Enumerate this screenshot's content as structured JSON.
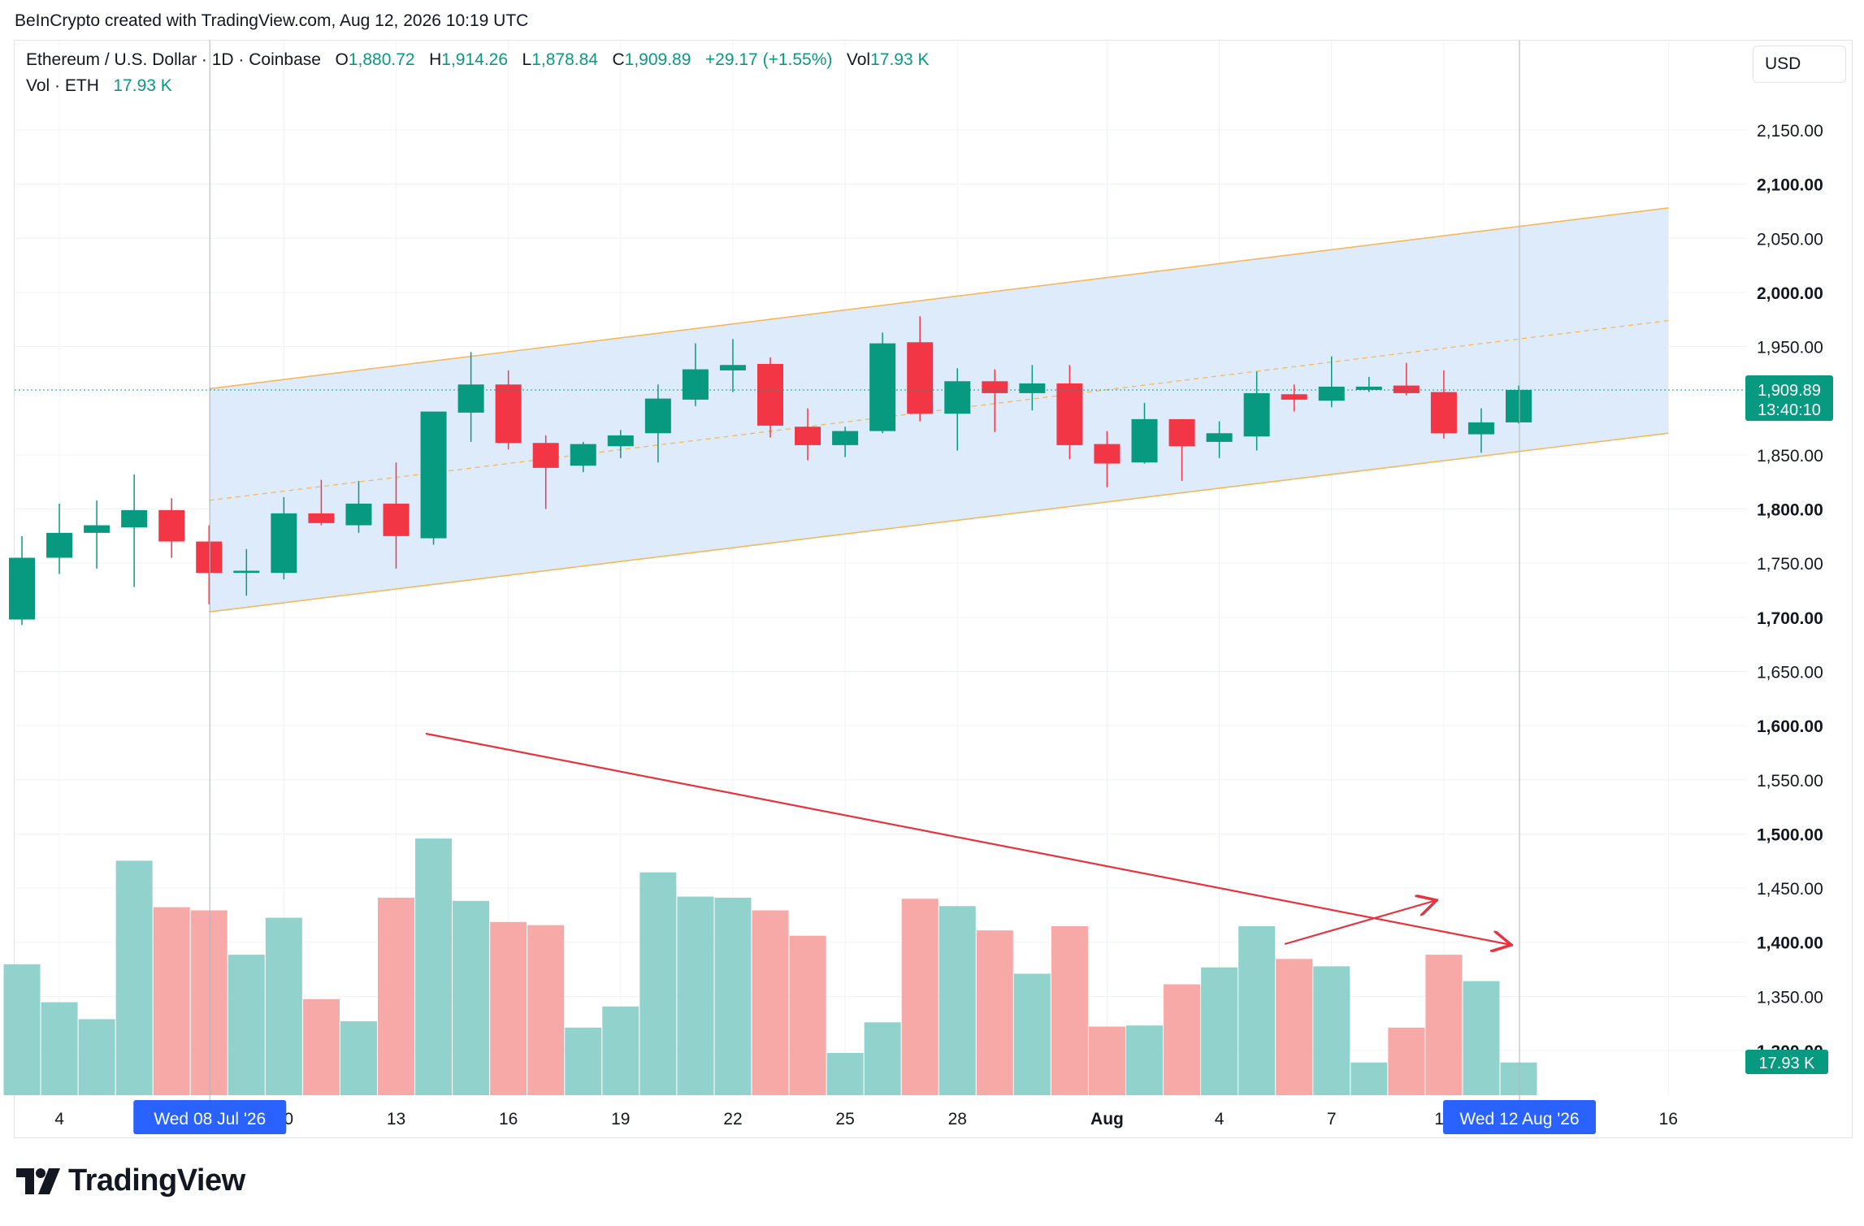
{
  "header": {
    "credit": "BeInCrypto created with TradingView.com, Aug 12, 2026 10:19 UTC"
  },
  "legend": {
    "symbol": "Ethereum / U.S. Dollar · 1D · Coinbase",
    "open_label": "O",
    "open": "1,880.72",
    "high_label": "H",
    "high": "1,914.26",
    "low_label": "L",
    "low": "1,878.84",
    "close_label": "C",
    "close": "1,909.89",
    "change": "+29.17 (+1.55%)",
    "vol_label": "Vol",
    "vol": "17.93 K",
    "vol_series": "Vol · ETH",
    "vol_series_value": "17.93 K"
  },
  "currency": "USD",
  "price_tag": {
    "price": "1,909.89",
    "countdown": "13:40:10"
  },
  "volume_tag": "17.93 K",
  "crosshair": {
    "left_date": "Wed 08 Jul '26",
    "right_date": "Wed 12 Aug '26"
  },
  "logo_text": "TradingView",
  "colors": {
    "up": "#089981",
    "down": "#f23645",
    "up_vol": "#92d2cc",
    "down_vol": "#f7a9a7",
    "channel_fill": "#dceafb",
    "channel_line": "#f5b85b",
    "arrow": "#e8323e"
  },
  "chart_data": {
    "type": "candlestick",
    "title": "Ethereum / U.S. Dollar · 1D · Coinbase",
    "y_ticks": [
      {
        "v": 2150,
        "label": "2,150.00",
        "bold": false
      },
      {
        "v": 2100,
        "label": "2,100.00",
        "bold": true
      },
      {
        "v": 2050,
        "label": "2,050.00",
        "bold": false
      },
      {
        "v": 2000,
        "label": "2,000.00",
        "bold": true
      },
      {
        "v": 1950,
        "label": "1,950.00",
        "bold": false
      },
      {
        "v": 1850,
        "label": "1,850.00",
        "bold": false
      },
      {
        "v": 1800,
        "label": "1,800.00",
        "bold": true
      },
      {
        "v": 1750,
        "label": "1,750.00",
        "bold": false
      },
      {
        "v": 1700,
        "label": "1,700.00",
        "bold": true
      },
      {
        "v": 1650,
        "label": "1,650.00",
        "bold": false
      },
      {
        "v": 1600,
        "label": "1,600.00",
        "bold": true
      },
      {
        "v": 1550,
        "label": "1,550.00",
        "bold": false
      },
      {
        "v": 1500,
        "label": "1,500.00",
        "bold": true
      },
      {
        "v": 1450,
        "label": "1,450.00",
        "bold": false
      },
      {
        "v": 1400,
        "label": "1,400.00",
        "bold": true
      },
      {
        "v": 1350,
        "label": "1,350.00",
        "bold": false
      },
      {
        "v": 1300,
        "label": "1,300.00",
        "bold": true
      }
    ],
    "x_ticks": [
      {
        "i": 1,
        "label": "4",
        "bold": false
      },
      {
        "i": 7,
        "label": "10",
        "bold": false
      },
      {
        "i": 10,
        "label": "13",
        "bold": false
      },
      {
        "i": 13,
        "label": "16",
        "bold": false
      },
      {
        "i": 16,
        "label": "19",
        "bold": false
      },
      {
        "i": 19,
        "label": "22",
        "bold": false
      },
      {
        "i": 22,
        "label": "25",
        "bold": false
      },
      {
        "i": 25,
        "label": "28",
        "bold": false
      },
      {
        "i": 29,
        "label": "Aug",
        "bold": true
      },
      {
        "i": 32,
        "label": "4",
        "bold": false
      },
      {
        "i": 35,
        "label": "7",
        "bold": false
      },
      {
        "i": 38,
        "label": "10",
        "bold": false
      },
      {
        "i": 44,
        "label": "16",
        "bold": false
      }
    ],
    "candles": [
      {
        "o": 1698,
        "h": 1775,
        "l": 1693,
        "c": 1755
      },
      {
        "o": 1755,
        "h": 1805,
        "l": 1740,
        "c": 1778
      },
      {
        "o": 1778,
        "h": 1808,
        "l": 1745,
        "c": 1785
      },
      {
        "o": 1783,
        "h": 1832,
        "l": 1728,
        "c": 1799
      },
      {
        "o": 1799,
        "h": 1810,
        "l": 1755,
        "c": 1770
      },
      {
        "o": 1770,
        "h": 1785,
        "l": 1712,
        "c": 1741
      },
      {
        "o": 1741,
        "h": 1763,
        "l": 1720,
        "c": 1743
      },
      {
        "o": 1741,
        "h": 1811,
        "l": 1735,
        "c": 1796
      },
      {
        "o": 1796,
        "h": 1827,
        "l": 1785,
        "c": 1787
      },
      {
        "o": 1785,
        "h": 1826,
        "l": 1778,
        "c": 1805
      },
      {
        "o": 1805,
        "h": 1843,
        "l": 1745,
        "c": 1775
      },
      {
        "o": 1773,
        "h": 1890,
        "l": 1767,
        "c": 1890
      },
      {
        "o": 1889,
        "h": 1945,
        "l": 1862,
        "c": 1915
      },
      {
        "o": 1915,
        "h": 1928,
        "l": 1855,
        "c": 1861
      },
      {
        "o": 1861,
        "h": 1868,
        "l": 1800,
        "c": 1838
      },
      {
        "o": 1840,
        "h": 1862,
        "l": 1834,
        "c": 1860
      },
      {
        "o": 1858,
        "h": 1873,
        "l": 1847,
        "c": 1868
      },
      {
        "o": 1870,
        "h": 1915,
        "l": 1843,
        "c": 1902
      },
      {
        "o": 1901,
        "h": 1953,
        "l": 1895,
        "c": 1929
      },
      {
        "o": 1928,
        "h": 1957,
        "l": 1908,
        "c": 1933
      },
      {
        "o": 1934,
        "h": 1940,
        "l": 1866,
        "c": 1877
      },
      {
        "o": 1876,
        "h": 1893,
        "l": 1845,
        "c": 1859
      },
      {
        "o": 1859,
        "h": 1876,
        "l": 1848,
        "c": 1872
      },
      {
        "o": 1872,
        "h": 1963,
        "l": 1870,
        "c": 1953
      },
      {
        "o": 1954,
        "h": 1978,
        "l": 1881,
        "c": 1888
      },
      {
        "o": 1888,
        "h": 1930,
        "l": 1854,
        "c": 1918
      },
      {
        "o": 1918,
        "h": 1929,
        "l": 1871,
        "c": 1907
      },
      {
        "o": 1907,
        "h": 1933,
        "l": 1891,
        "c": 1916
      },
      {
        "o": 1916,
        "h": 1933,
        "l": 1846,
        "c": 1859
      },
      {
        "o": 1860,
        "h": 1872,
        "l": 1820,
        "c": 1842
      },
      {
        "o": 1843,
        "h": 1898,
        "l": 1842,
        "c": 1883
      },
      {
        "o": 1883,
        "h": 1883,
        "l": 1826,
        "c": 1858
      },
      {
        "o": 1862,
        "h": 1881,
        "l": 1847,
        "c": 1870
      },
      {
        "o": 1867,
        "h": 1927,
        "l": 1854,
        "c": 1907
      },
      {
        "o": 1906,
        "h": 1915,
        "l": 1890,
        "c": 1901
      },
      {
        "o": 1900,
        "h": 1941,
        "l": 1894,
        "c": 1913
      },
      {
        "o": 1910,
        "h": 1922,
        "l": 1908,
        "c": 1913
      },
      {
        "o": 1914,
        "h": 1935,
        "l": 1905,
        "c": 1907
      },
      {
        "o": 1908,
        "h": 1928,
        "l": 1865,
        "c": 1870
      },
      {
        "o": 1869,
        "h": 1893,
        "l": 1852,
        "c": 1880
      },
      {
        "o": 1880,
        "h": 1914,
        "l": 1879,
        "c": 1910
      }
    ],
    "volume_ylim": [
      0,
      245
    ],
    "volume": [
      124,
      88,
      72,
      222,
      178,
      175,
      133,
      168,
      91,
      70,
      187,
      243,
      184,
      164,
      161,
      64,
      84,
      211,
      188,
      187,
      175,
      151,
      40,
      69,
      186,
      179,
      156,
      115,
      160,
      65,
      66,
      105,
      121,
      160,
      129,
      122,
      31,
      64,
      133,
      108,
      31
    ],
    "channel": {
      "upper": [
        {
          "i": 5,
          "v": 1911
        },
        {
          "i": 44,
          "v": 2078
        }
      ],
      "lower": [
        {
          "i": 5,
          "v": 1705
        },
        {
          "i": 44,
          "v": 1870
        }
      ],
      "mid": [
        {
          "i": 5,
          "v": 1808
        },
        {
          "i": 44,
          "v": 1974
        }
      ]
    },
    "current_price": 1909.89,
    "crosshair_indices": [
      5,
      40
    ]
  }
}
